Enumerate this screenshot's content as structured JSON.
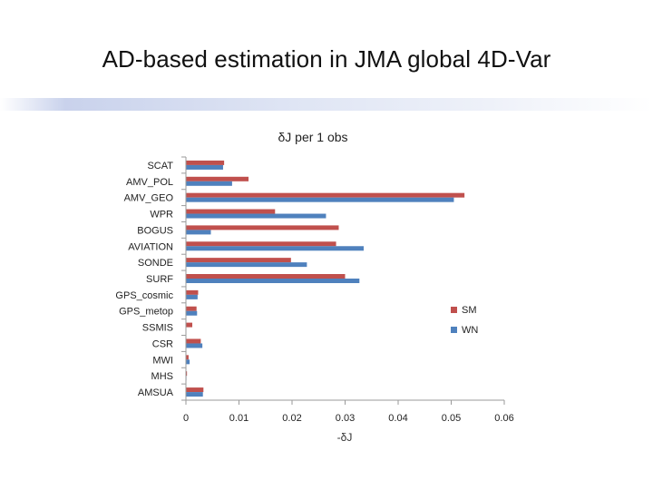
{
  "slide": {
    "title": "AD-based estimation in JMA global 4D-Var"
  },
  "chart_data": {
    "type": "bar",
    "orientation": "horizontal",
    "title": "δJ per 1 obs",
    "xlabel": "-δJ",
    "ylabel": "",
    "xlim": [
      0,
      0.06
    ],
    "x_ticks": [
      "0",
      "0.01",
      "0.02",
      "0.03",
      "0.04",
      "0.05",
      "0.06"
    ],
    "grid": false,
    "legend_position": "right",
    "categories": [
      "SCAT",
      "AMV_POL",
      "AMV_GEO",
      "WPR",
      "BOGUS",
      "AVIATION",
      "SONDE",
      "SURF",
      "GPS_cosmic",
      "GPS_metop",
      "SSMIS",
      "CSR",
      "MWI",
      "MHS",
      "AMSUA"
    ],
    "series": [
      {
        "name": "SM",
        "color": "#c0504d",
        "values": [
          0.0072,
          0.0118,
          0.0525,
          0.0168,
          0.0288,
          0.0283,
          0.0198,
          0.03,
          0.0023,
          0.002,
          0.0012,
          0.0028,
          0.0005,
          0.0002,
          0.0033
        ]
      },
      {
        "name": "WN",
        "color": "#4f81bd",
        "values": [
          0.007,
          0.0087,
          0.0505,
          0.0264,
          0.0047,
          0.0335,
          0.0228,
          0.0327,
          0.0022,
          0.0021,
          0.0,
          0.0031,
          0.0007,
          0.0001,
          0.0032
        ]
      }
    ]
  }
}
